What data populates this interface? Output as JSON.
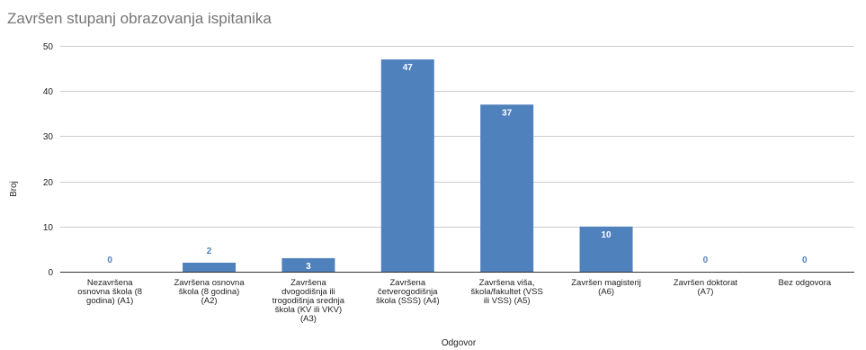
{
  "chart_data": {
    "type": "bar",
    "title": "Završen stupanj obrazovanja ispitanika",
    "xlabel": "Odgovor",
    "ylabel": "Broj",
    "ylim": [
      0,
      50
    ],
    "yticks": [
      "0",
      "10",
      "20",
      "30",
      "40",
      "50"
    ],
    "grid": true,
    "legend": "none",
    "bar_color": "#4f81bd",
    "label_inside_color": "#ffffff",
    "label_outside_color": "#4f81bd",
    "categories": [
      [
        "Nezavršena",
        "osnovna škola (8",
        "godina) (A1)"
      ],
      [
        "Završena osnovna",
        "škola (8 godina)",
        "(A2)"
      ],
      [
        "Završena",
        "dvogodišnja ili",
        "trogodišnja srednja",
        "škola (KV ili VKV)",
        "(A3)"
      ],
      [
        "Završena",
        "četverogodišnja",
        "škola (SSS) (A4)"
      ],
      [
        "Završena viša,",
        "škola/fakultet (VSS",
        "ili VSS) (A5)"
      ],
      [
        "Završen magisterij",
        "(A6)"
      ],
      [
        "Završen doktorat",
        "(A7)"
      ],
      [
        "Bez odgovora"
      ]
    ],
    "values": [
      0,
      2,
      3,
      47,
      37,
      10,
      0,
      0
    ],
    "value_labels": [
      "0",
      "2",
      "3",
      "47",
      "37",
      "10",
      "0",
      "0"
    ]
  }
}
